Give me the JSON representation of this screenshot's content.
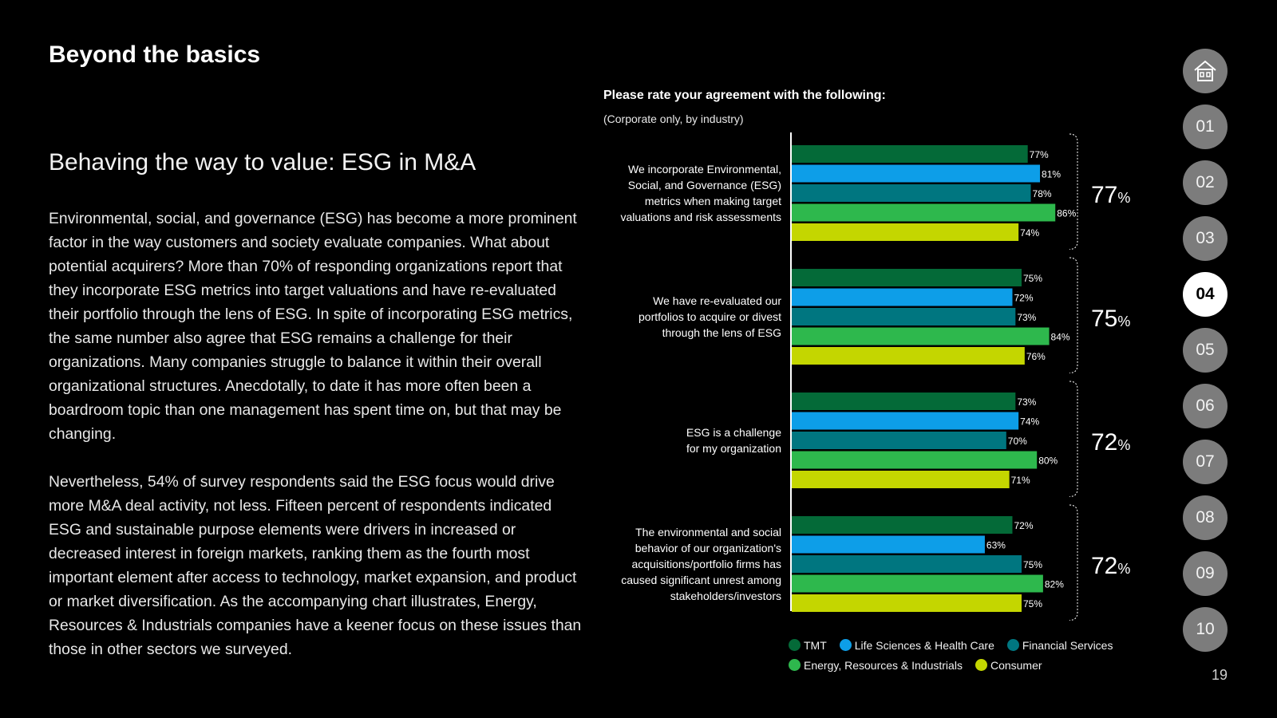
{
  "header": {
    "title": "Beyond the basics"
  },
  "section": {
    "subtitle": "Behaving the way to value: ESG in M&A",
    "paragraph1": "Environmental, social, and governance (ESG) has become a more prominent factor in the way customers and society evaluate companies. What about potential acquirers?  More than 70% of responding organizations report that they incorporate ESG metrics into target valuations and have re-evaluated their portfolio through the lens of ESG. In spite of incorporating ESG metrics, the same number also agree that ESG remains a challenge for their organizations. Many companies struggle to balance it within their overall organizational structures. Anecdotally, to date it has more often been a boardroom topic than one management has spent time on, but that may be changing.",
    "paragraph2": "Nevertheless, 54% of survey respondents said the ESG focus would drive more M&A deal activity, not less. Fifteen percent of respondents indicated ESG and sustainable purpose elements were drivers in increased or decreased interest in foreign markets, ranking them as the fourth most important element after access to technology, market expansion, and product or market diversification. As the accompanying chart illustrates, Energy, Resources & Industrials companies have a keener focus on these issues than those in other sectors we surveyed."
  },
  "chart_data": {
    "type": "bar",
    "orientation": "horizontal",
    "title": "Please rate your agreement with the following:",
    "subtitle": "(Corporate only, by industry)",
    "value_suffix": "%",
    "xlim": [
      0,
      100
    ],
    "categories": [
      "We incorporate Environmental, Social, and Governance (ESG) metrics when making target valuations and risk assessments",
      "We have re-evaluated our portfolios to acquire or divest through the lens of ESG",
      "ESG is a challenge for my organization",
      "The environmental and social behavior of our organization's acquisitions/portfolio firms has caused significant unrest among stakeholders/investors"
    ],
    "category_lines": [
      [
        "We incorporate Environmental,",
        "Social, and Governance (ESG)",
        "metrics when making target",
        "valuations and risk assessments"
      ],
      [
        "We have re-evaluated our",
        "portfolios to acquire or divest",
        "through the lens of ESG"
      ],
      [
        "ESG is a challenge",
        "for my organization"
      ],
      [
        "The environmental and social",
        "behavior of our organization's",
        "acquisitions/portfolio firms has",
        "caused significant unrest among",
        "stakeholders/investors"
      ]
    ],
    "series": [
      {
        "name": "TMT",
        "color": "#046a38",
        "values": [
          77,
          75,
          73,
          72
        ]
      },
      {
        "name": "Life Sciences & Health Care",
        "color": "#0d9ee8",
        "values": [
          81,
          72,
          74,
          63
        ]
      },
      {
        "name": "Financial Services",
        "color": "#007680",
        "values": [
          78,
          73,
          70,
          75
        ]
      },
      {
        "name": "Energy, Resources & Industrials",
        "color": "#2eb84d",
        "values": [
          86,
          84,
          80,
          82
        ]
      },
      {
        "name": "Consumer",
        "color": "#c4d600",
        "values": [
          74,
          76,
          71,
          75
        ]
      }
    ],
    "totals": [
      77,
      75,
      72,
      72
    ]
  },
  "nav": {
    "home_icon": "home-icon",
    "items": [
      "01",
      "02",
      "03",
      "04",
      "05",
      "06",
      "07",
      "08",
      "09",
      "10"
    ],
    "active": "04"
  },
  "footer": {
    "page_number": "19"
  }
}
